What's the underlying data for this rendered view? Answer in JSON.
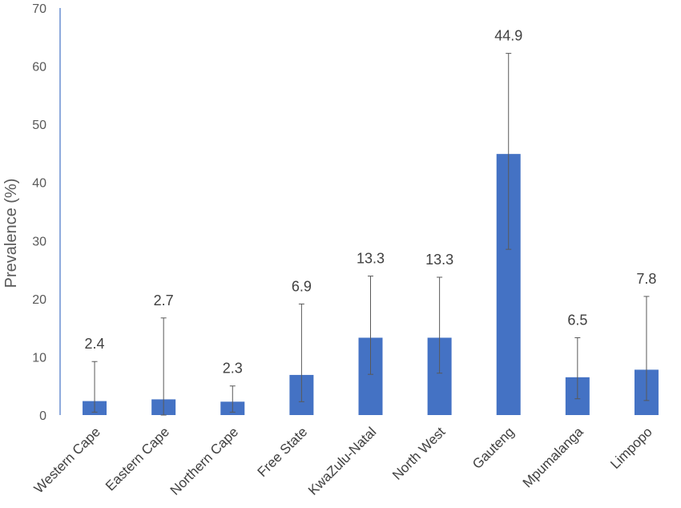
{
  "chart_data": {
    "type": "bar",
    "ylabel": "Prevalence (%)",
    "xlabel": "",
    "ylim": [
      0,
      70
    ],
    "yticks": [
      0,
      10,
      20,
      30,
      40,
      50,
      60,
      70
    ],
    "grid": false,
    "categories": [
      "Western Cape",
      "Eastern Cape",
      "Northern Cape",
      "Free State",
      "KwaZulu-Natal",
      "North West",
      "Gauteng",
      "Mpumalanga",
      "Limpopo"
    ],
    "values": [
      2.4,
      2.7,
      2.3,
      6.9,
      13.3,
      13.3,
      44.9,
      6.5,
      7.8
    ],
    "data_labels": [
      "2.4",
      "2.7",
      "2.3",
      "6.9",
      "13.3",
      "13.3",
      "44.9",
      "6.5",
      "7.8"
    ],
    "error_low": [
      0.5,
      0,
      0.5,
      2.3,
      7.0,
      7.2,
      28.5,
      2.8,
      2.5
    ],
    "error_high": [
      9.2,
      16.7,
      5.0,
      19.1,
      23.9,
      23.7,
      62.2,
      13.3,
      20.4
    ],
    "bar_color": "#4472c4",
    "axis_color": "#4472c4",
    "error_color": "#595959"
  }
}
